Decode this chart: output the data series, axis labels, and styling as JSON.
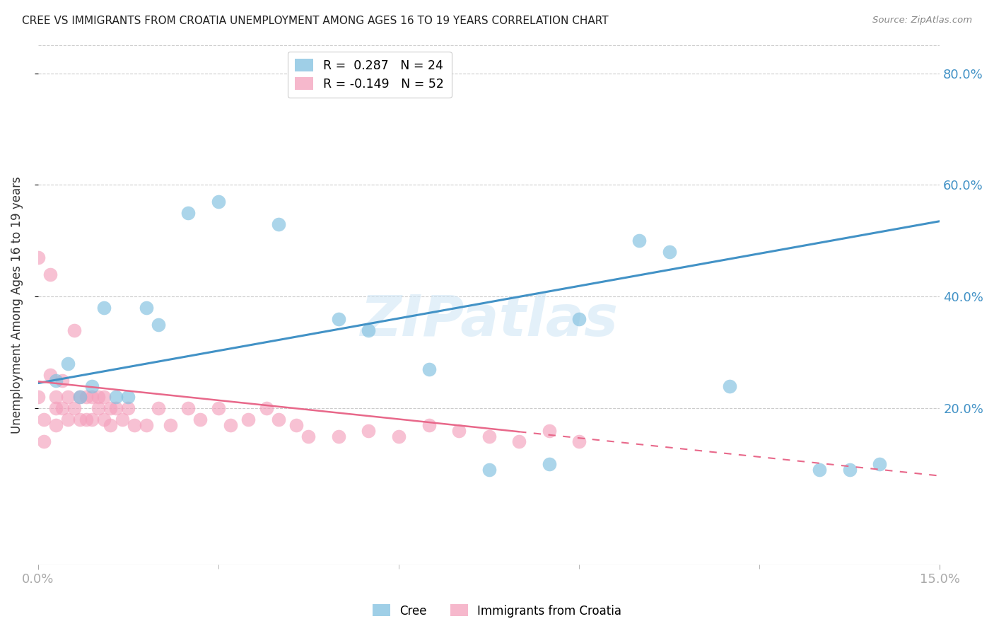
{
  "title": "CREE VS IMMIGRANTS FROM CROATIA UNEMPLOYMENT AMONG AGES 16 TO 19 YEARS CORRELATION CHART",
  "source": "Source: ZipAtlas.com",
  "ylabel": "Unemployment Among Ages 16 to 19 years",
  "x_min": 0.0,
  "x_max": 0.15,
  "y_min": -0.08,
  "y_max": 0.85,
  "ytick_labels": [
    "20.0%",
    "40.0%",
    "60.0%",
    "80.0%"
  ],
  "ytick_values": [
    0.2,
    0.4,
    0.6,
    0.8
  ],
  "watermark": "ZIPatlas",
  "legend_labels": [
    "R =  0.287   N = 24",
    "R = -0.149   N = 52"
  ],
  "cree_color": "#7fbfdf",
  "croatia_color": "#f4a0bc",
  "cree_line_color": "#4292c6",
  "croatia_line_color": "#e8688a",
  "bottom_legend_labels": [
    "Cree",
    "Immigrants from Croatia"
  ],
  "cree_points_x": [
    0.003,
    0.005,
    0.007,
    0.009,
    0.011,
    0.013,
    0.015,
    0.018,
    0.02,
    0.025,
    0.03,
    0.04,
    0.05,
    0.055,
    0.065,
    0.075,
    0.085,
    0.09,
    0.1,
    0.105,
    0.115,
    0.13,
    0.135,
    0.14
  ],
  "cree_points_y": [
    0.25,
    0.28,
    0.22,
    0.24,
    0.38,
    0.22,
    0.22,
    0.38,
    0.35,
    0.55,
    0.57,
    0.53,
    0.36,
    0.34,
    0.27,
    0.09,
    0.1,
    0.36,
    0.5,
    0.48,
    0.24,
    0.09,
    0.09,
    0.1
  ],
  "croatia_points_x": [
    0.0,
    0.0,
    0.001,
    0.001,
    0.002,
    0.002,
    0.003,
    0.003,
    0.003,
    0.004,
    0.004,
    0.005,
    0.005,
    0.006,
    0.006,
    0.007,
    0.007,
    0.008,
    0.008,
    0.009,
    0.009,
    0.01,
    0.01,
    0.011,
    0.011,
    0.012,
    0.012,
    0.013,
    0.014,
    0.015,
    0.016,
    0.018,
    0.02,
    0.022,
    0.025,
    0.027,
    0.03,
    0.032,
    0.035,
    0.038,
    0.04,
    0.043,
    0.045,
    0.05,
    0.055,
    0.06,
    0.065,
    0.07,
    0.075,
    0.08,
    0.085,
    0.09
  ],
  "croatia_points_y": [
    0.47,
    0.22,
    0.18,
    0.14,
    0.44,
    0.26,
    0.22,
    0.2,
    0.17,
    0.25,
    0.2,
    0.22,
    0.18,
    0.34,
    0.2,
    0.22,
    0.18,
    0.22,
    0.18,
    0.22,
    0.18,
    0.22,
    0.2,
    0.22,
    0.18,
    0.2,
    0.17,
    0.2,
    0.18,
    0.2,
    0.17,
    0.17,
    0.2,
    0.17,
    0.2,
    0.18,
    0.2,
    0.17,
    0.18,
    0.2,
    0.18,
    0.17,
    0.15,
    0.15,
    0.16,
    0.15,
    0.17,
    0.16,
    0.15,
    0.14,
    0.16,
    0.14
  ],
  "cree_line_x": [
    0.0,
    0.15
  ],
  "cree_line_y": [
    0.245,
    0.535
  ],
  "croatia_line_x": [
    0.0,
    0.08
  ],
  "croatia_line_y": [
    0.248,
    0.158
  ],
  "croatia_dashed_line_x": [
    0.08,
    0.15
  ],
  "croatia_dashed_line_y": [
    0.158,
    0.079
  ]
}
